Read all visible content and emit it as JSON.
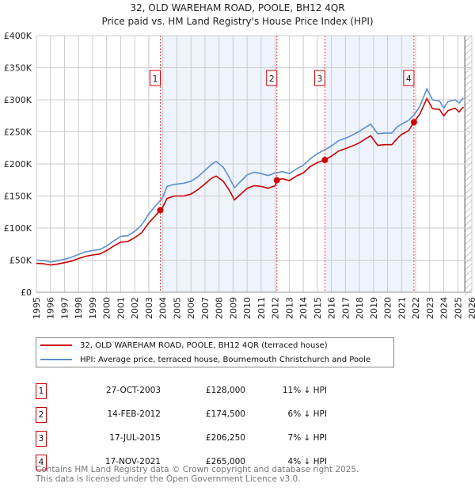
{
  "title": "32, OLD WAREHAM ROAD, POOLE, BH12 4QR",
  "subtitle": "Price paid vs. HM Land Registry's House Price Index (HPI)",
  "colors": {
    "price": "#cc0000",
    "hpi": "#5b8fd0",
    "shade": "#eef3fc"
  },
  "chart_data": {
    "type": "line",
    "xlim": [
      1995,
      2026
    ],
    "ylim": [
      0,
      400000
    ],
    "yticks": [
      {
        "v": 0,
        "label": "£0"
      },
      {
        "v": 50000,
        "label": "£50K"
      },
      {
        "v": 100000,
        "label": "£100K"
      },
      {
        "v": 150000,
        "label": "£150K"
      },
      {
        "v": 200000,
        "label": "£200K"
      },
      {
        "v": 250000,
        "label": "£250K"
      },
      {
        "v": 300000,
        "label": "£300K"
      },
      {
        "v": 350000,
        "label": "£350K"
      },
      {
        "v": 400000,
        "label": "£400K"
      }
    ],
    "xticks": [
      "1995",
      "1996",
      "1997",
      "1998",
      "1999",
      "2000",
      "2001",
      "2002",
      "2003",
      "2004",
      "2005",
      "2006",
      "2007",
      "2008",
      "2009",
      "2010",
      "2011",
      "2012",
      "2013",
      "2014",
      "2015",
      "2016",
      "2017",
      "2018",
      "2019",
      "2020",
      "2021",
      "2022",
      "2023",
      "2024",
      "2025",
      "2026"
    ],
    "x": [
      1995,
      1995.5,
      1996,
      1996.5,
      1997,
      1997.5,
      1998,
      1998.5,
      1999,
      1999.5,
      2000,
      2000.5,
      2001,
      2001.5,
      2002,
      2002.5,
      2003,
      2003.5,
      2003.82,
      2004,
      2004.3,
      2004.8,
      2005.5,
      2006,
      2006.5,
      2007,
      2007.5,
      2007.8,
      2008.3,
      2008.7,
      2009.1,
      2009.5,
      2010,
      2010.5,
      2011,
      2011.5,
      2012,
      2012.12,
      2012.5,
      2013,
      2013.5,
      2014,
      2014.5,
      2015,
      2015.54,
      2016,
      2016.5,
      2017,
      2017.5,
      2018,
      2018.5,
      2018.8,
      2019.3,
      2019.8,
      2020.3,
      2020.7,
      2021,
      2021.5,
      2021.88,
      2022.3,
      2022.8,
      2023.2,
      2023.7,
      2024,
      2024.3,
      2024.8,
      2025.1,
      2025.4
    ],
    "series": [
      {
        "name": "32, OLD WAREHAM ROAD, POOLE, BH12 4QR (terraced house)",
        "color": "#cc0000",
        "values": [
          45000,
          44500,
          42500,
          44000,
          46000,
          48500,
          52500,
          56000,
          58000,
          59500,
          65000,
          72000,
          78000,
          79000,
          85000,
          93000,
          108000,
          120000,
          128000,
          133000,
          146000,
          150000,
          150000,
          153000,
          160000,
          169000,
          178000,
          181000,
          173000,
          160000,
          144000,
          152000,
          162000,
          166000,
          165000,
          162000,
          166000,
          174500,
          177000,
          174000,
          181000,
          186000,
          196000,
          202000,
          206250,
          212000,
          220000,
          224000,
          228000,
          233000,
          240000,
          244000,
          229000,
          230000,
          230000,
          240000,
          246000,
          252000,
          265000,
          278000,
          302000,
          286000,
          285000,
          275000,
          283000,
          287000,
          281000,
          289000
        ]
      },
      {
        "name": "HPI: Average price, terraced house, Bournemouth Christchurch and Poole",
        "color": "#5b8fd0",
        "values": [
          50000,
          49500,
          47000,
          49000,
          51500,
          54500,
          59000,
          63000,
          65000,
          66500,
          72000,
          80000,
          87000,
          88000,
          95000,
          105000,
          122000,
          135000,
          143000,
          148000,
          165000,
          168000,
          170000,
          173000,
          180000,
          190000,
          200000,
          204000,
          195000,
          180000,
          163000,
          172000,
          183000,
          187000,
          185000,
          182000,
          186000,
          186000,
          188000,
          185000,
          192000,
          198000,
          208000,
          216000,
          222000,
          228000,
          236000,
          240000,
          245000,
          251000,
          258000,
          262000,
          247000,
          248000,
          248000,
          258000,
          262000,
          268000,
          276000,
          290000,
          317000,
          300000,
          298000,
          287000,
          297000,
          300000,
          295000,
          303000
        ]
      }
    ],
    "sales": [
      {
        "label": "1",
        "x": 2003.82,
        "y": 128000
      },
      {
        "label": "2",
        "x": 2012.12,
        "y": 174500
      },
      {
        "label": "3",
        "x": 2015.54,
        "y": 206250
      },
      {
        "label": "4",
        "x": 2021.88,
        "y": 265000
      }
    ],
    "shaded_ranges": [
      [
        2003.82,
        2012.12
      ],
      [
        2015.54,
        2021.88
      ]
    ],
    "hatched_from": 2025.5,
    "legend_position": "below"
  },
  "legend": {
    "price": "32, OLD WAREHAM ROAD, POOLE, BH12 4QR (terraced house)",
    "hpi": "HPI: Average price, terraced house, Bournemouth Christchurch and Poole"
  },
  "sales_table": [
    {
      "num": "1",
      "date": "27-OCT-2003",
      "price": "£128,000",
      "hpi": "11% ↓ HPI"
    },
    {
      "num": "2",
      "date": "14-FEB-2012",
      "price": "£174,500",
      "hpi": "6% ↓ HPI"
    },
    {
      "num": "3",
      "date": "17-JUL-2015",
      "price": "£206,250",
      "hpi": "7% ↓ HPI"
    },
    {
      "num": "4",
      "date": "17-NOV-2021",
      "price": "£265,000",
      "hpi": "4% ↓ HPI"
    }
  ],
  "footer": {
    "line1": "Contains HM Land Registry data © Crown copyright and database right 2025.",
    "line2": "This data is licensed under the Open Government Licence v3.0."
  }
}
